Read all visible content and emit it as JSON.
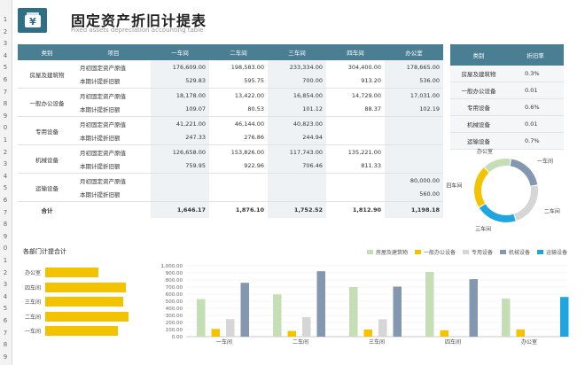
{
  "header": {
    "title": "固定资产折旧计提表",
    "subtitle": "Fixed assets depreciation accounting table",
    "icon": "yen-wallet-icon"
  },
  "row_numbers": [
    "1",
    "2",
    "3",
    "4",
    "5",
    "6",
    "7",
    "8",
    "9",
    "0",
    "1",
    "2",
    "3",
    "4",
    "5",
    "6",
    "7",
    "8",
    "9",
    "0",
    "1",
    "2",
    "3",
    "4",
    "5",
    "6",
    "7",
    "8",
    "9"
  ],
  "main_table": {
    "headers": [
      "类别",
      "项目",
      "一车间",
      "二车间",
      "三车间",
      "四车间",
      "办公室"
    ],
    "rows": [
      {
        "cat": "房屋及建筑物",
        "item": "月初固定资产原值",
        "v": [
          "176,609.00",
          "198,583.00",
          "233,334.00",
          "304,400.00",
          "178,665.00"
        ]
      },
      {
        "cat": "",
        "item": "本期计提折旧额",
        "v": [
          "529.83",
          "595.75",
          "700.00",
          "913.20",
          "536.00"
        ]
      },
      {
        "cat": "一般办公设备",
        "item": "月初固定资产原值",
        "v": [
          "18,178.00",
          "13,422.00",
          "16,854.00",
          "14,729.00",
          "17,031.00"
        ]
      },
      {
        "cat": "",
        "item": "本期计提折旧额",
        "v": [
          "109.07",
          "80.53",
          "101.12",
          "88.37",
          "102.19"
        ]
      },
      {
        "cat": "专用设备",
        "item": "月初固定资产原值",
        "v": [
          "41,221.00",
          "46,144.00",
          "40,823.00",
          "",
          ""
        ]
      },
      {
        "cat": "",
        "item": "本期计提折旧额",
        "v": [
          "247.33",
          "276.86",
          "244.94",
          "",
          ""
        ]
      },
      {
        "cat": "机械设备",
        "item": "月初固定资产原值",
        "v": [
          "126,658.00",
          "153,826.00",
          "117,743.00",
          "135,221.00",
          ""
        ]
      },
      {
        "cat": "",
        "item": "本期计提折旧额",
        "v": [
          "759.95",
          "922.96",
          "706.46",
          "811.33",
          ""
        ]
      },
      {
        "cat": "运输设备",
        "item": "月初固定资产原值",
        "v": [
          "",
          "",
          "",
          "",
          "80,000.00"
        ]
      },
      {
        "cat": "",
        "item": "本期计提折旧额",
        "v": [
          "",
          "",
          "",
          "",
          "560.00"
        ]
      }
    ],
    "total": {
      "label": "合计",
      "v": [
        "1,646.17",
        "1,876.10",
        "1,752.52",
        "1,812.90",
        "1,198.18"
      ]
    }
  },
  "rate_table": {
    "headers": [
      "类别",
      "折旧率"
    ],
    "rows": [
      {
        "cat": "房屋及建筑物",
        "rate": "0.3%"
      },
      {
        "cat": "一般办公设备",
        "rate": "0.01"
      },
      {
        "cat": "专用设备",
        "rate": "0.6%"
      },
      {
        "cat": "机械设备",
        "rate": "0.01"
      },
      {
        "cat": "运输设备",
        "rate": "0.7%"
      }
    ]
  },
  "colors": {
    "header_bg": "#4a7f93",
    "accent": "#2e6f86",
    "yellow": "#f4c300",
    "green": "#c5deb5",
    "gray": "#d6d6d6",
    "slate": "#8497b0",
    "blue": "#1fa6e0"
  },
  "chart_data": [
    {
      "type": "pie",
      "title": "",
      "categories": [
        "一车间",
        "二车间",
        "三车间",
        "四车间",
        "办公室"
      ],
      "values": [
        1646.17,
        1876.1,
        1752.52,
        1812.9,
        1198.18
      ],
      "colors": [
        "#8497b0",
        "#d6d6d6",
        "#1fa6e0",
        "#f4c300",
        "#c5deb5"
      ]
    },
    {
      "type": "bar",
      "orientation": "horizontal",
      "title": "各部门计提合计",
      "categories": [
        "办公室",
        "四车间",
        "三车间",
        "二车间",
        "一车间"
      ],
      "values": [
        1198.18,
        1812.9,
        1752.52,
        1876.1,
        1646.17
      ]
    },
    {
      "type": "bar",
      "title": "",
      "categories": [
        "一车间",
        "二车间",
        "三车间",
        "四车间",
        "办公室"
      ],
      "ylim": [
        0,
        1000
      ],
      "yticks": [
        "0.00",
        "100.00",
        "200.00",
        "300.00",
        "400.00",
        "500.00",
        "600.00",
        "700.00",
        "800.00",
        "900.00",
        "1,000.00"
      ],
      "legend_position": "top-right",
      "series": [
        {
          "name": "房屋及建筑物",
          "color": "#c5deb5",
          "values": [
            529.83,
            595.75,
            700.0,
            913.2,
            536.0
          ]
        },
        {
          "name": "一般办公设备",
          "color": "#f4c300",
          "values": [
            109.07,
            80.53,
            101.12,
            88.37,
            102.19
          ]
        },
        {
          "name": "专用设备",
          "color": "#d6d6d6",
          "values": [
            247.33,
            276.86,
            244.94,
            0,
            0
          ]
        },
        {
          "name": "机械设备",
          "color": "#8497b0",
          "values": [
            759.95,
            922.96,
            706.46,
            811.33,
            0
          ]
        },
        {
          "name": "运输设备",
          "color": "#1fa6e0",
          "values": [
            0,
            0,
            0,
            0,
            560.0
          ]
        }
      ]
    }
  ]
}
